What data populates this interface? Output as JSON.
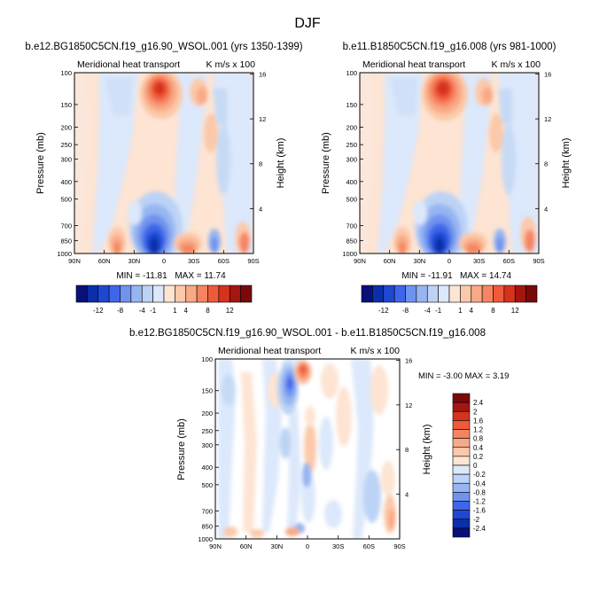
{
  "page_title": "DJF",
  "chart_data": [
    {
      "type": "heatmap",
      "title": "b.e12.BG1850C5CN.f19_g16.90_WSOL.001 (yrs 1350-1399)",
      "left_label": "Meridional heat transport",
      "units_label": "K m/s x 100",
      "ylabel": "Pressure (mb)",
      "ylabel_right": "Height (km)",
      "x_ticks": [
        "90N",
        "60N",
        "30N",
        "0",
        "30S",
        "60S",
        "90S"
      ],
      "y_ticks": [
        "100",
        "150",
        "200",
        "250",
        "300",
        "400",
        "500",
        "700",
        "850",
        "1000"
      ],
      "y_ticks_right": [
        "16",
        "12",
        "8",
        "4"
      ],
      "xlim_lat": [
        90,
        -90
      ],
      "ylim_mb": [
        100,
        1000
      ],
      "min": -11.81,
      "max": 11.74,
      "min_label": "MIN = -11.81",
      "max_label": "MAX = 11.74"
    },
    {
      "type": "heatmap",
      "title": "b.e11.B1850C5CN.f19_g16.008 (yrs 981-1000)",
      "left_label": "Meridional heat transport",
      "units_label": "K m/s x 100",
      "ylabel": "Pressure (mb)",
      "ylabel_right": "Height (km)",
      "x_ticks": [
        "90N",
        "60N",
        "30N",
        "0",
        "30S",
        "60S",
        "90S"
      ],
      "y_ticks": [
        "100",
        "150",
        "200",
        "250",
        "300",
        "400",
        "500",
        "700",
        "850",
        "1000"
      ],
      "y_ticks_right": [
        "16",
        "12",
        "8",
        "4"
      ],
      "xlim_lat": [
        90,
        -90
      ],
      "ylim_mb": [
        100,
        1000
      ],
      "min": -11.91,
      "max": 14.74,
      "min_label": "MIN = -11.91",
      "max_label": "MAX = 14.74"
    },
    {
      "type": "heatmap",
      "title": "b.e12.BG1850C5CN.f19_g16.90_WSOL.001 - b.e11.B1850C5CN.f19_g16.008",
      "left_label": "Meridional heat transport",
      "units_label": "K m/s x 100",
      "ylabel": "Pressure (mb)",
      "ylabel_right": "Height (km)",
      "x_ticks": [
        "90N",
        "60N",
        "30N",
        "0",
        "30S",
        "60S",
        "90S"
      ],
      "y_ticks": [
        "100",
        "150",
        "200",
        "250",
        "300",
        "400",
        "500",
        "700",
        "850",
        "1000"
      ],
      "y_ticks_right": [
        "16",
        "12",
        "8",
        "4"
      ],
      "xlim_lat": [
        90,
        -90
      ],
      "ylim_mb": [
        100,
        1000
      ],
      "min": -3.0,
      "max": 3.19,
      "minmax_label": "MIN =  -3.00   MAX =   3.19"
    }
  ],
  "colorbar_top": {
    "colors": [
      "#08107a",
      "#0b2fa8",
      "#1f48d2",
      "#3e66e8",
      "#6f93ef",
      "#97b5f2",
      "#bcd3f5",
      "#dce8fb",
      "#fde4d3",
      "#fbc9a9",
      "#f9a985",
      "#f58562",
      "#ef5a3a",
      "#d6321c",
      "#a51511",
      "#7a0a0a"
    ],
    "labels": [
      "-12",
      "-8",
      "-4",
      "-1",
      "1",
      "4",
      "8",
      "12"
    ]
  },
  "colorbar_diff": {
    "colors": [
      "#08107a",
      "#0b2fa8",
      "#1f48d2",
      "#3e66e8",
      "#6f93ef",
      "#97b5f2",
      "#bcd3f5",
      "#dce8fb",
      "#fde4d3",
      "#fbc9a9",
      "#f9a985",
      "#f58562",
      "#ef5a3a",
      "#d6321c",
      "#a51511",
      "#7a0a0a"
    ],
    "labels": [
      "2.4",
      "2",
      "1.6",
      "1.2",
      "0.8",
      "0.4",
      "0.2",
      "0",
      "-0.2",
      "-0.4",
      "-0.8",
      "-1.2",
      "-1.6",
      "-2",
      "-2.4"
    ]
  }
}
